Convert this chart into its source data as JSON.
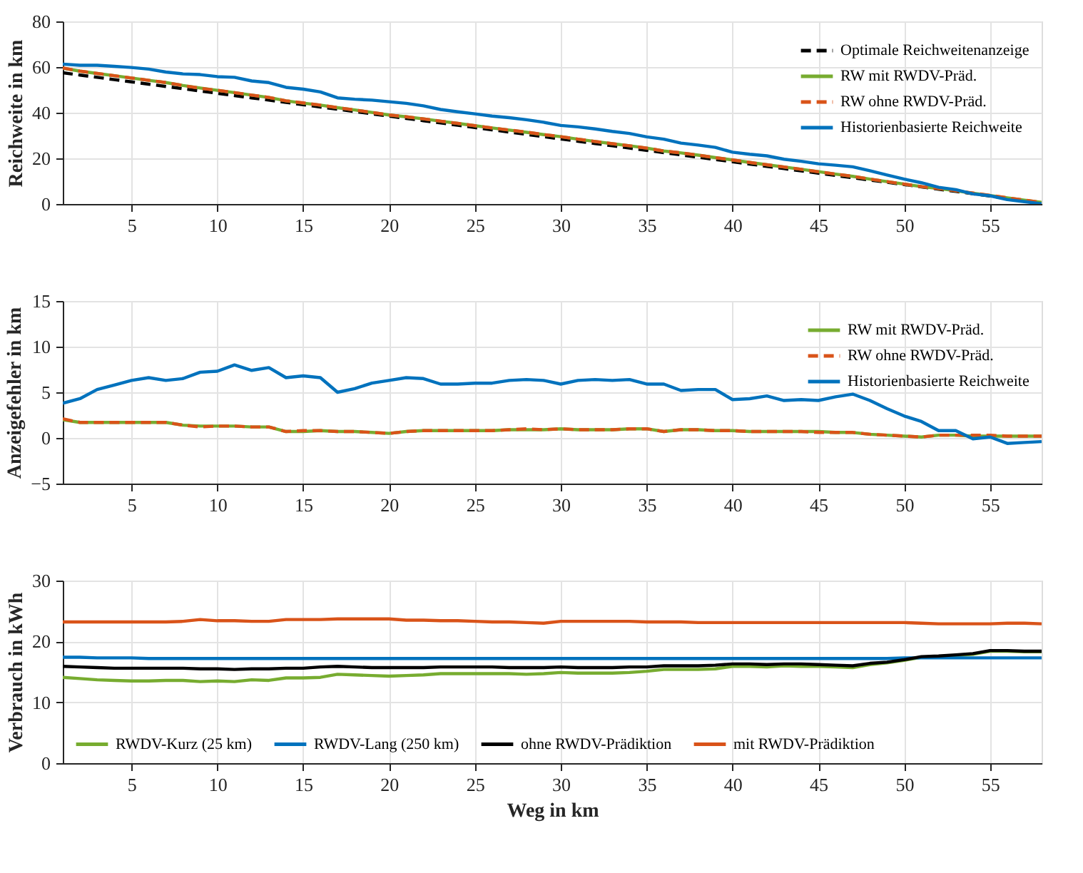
{
  "chart_data": [
    {
      "type": "line",
      "ylabel": "Reichweite in km",
      "xlim": [
        1,
        58
      ],
      "xticks": [
        5,
        10,
        15,
        20,
        25,
        30,
        35,
        40,
        45,
        50,
        55
      ],
      "ylim": [
        0,
        80
      ],
      "yticks": [
        0,
        20,
        40,
        60,
        80
      ],
      "grid": true,
      "legend": "top right",
      "x": [
        1,
        2,
        3,
        4,
        5,
        6,
        7,
        8,
        9,
        10,
        11,
        12,
        13,
        14,
        15,
        16,
        17,
        18,
        19,
        20,
        21,
        22,
        23,
        24,
        25,
        26,
        27,
        28,
        29,
        30,
        31,
        32,
        33,
        34,
        35,
        36,
        37,
        38,
        39,
        40,
        41,
        42,
        43,
        44,
        45,
        46,
        47,
        48,
        49,
        50,
        51,
        52,
        53,
        54,
        55,
        56,
        57,
        58
      ],
      "series": [
        {
          "name": "Optimale Reichweitenanzeige",
          "color": "#000000",
          "line_style": "dashed",
          "values": [
            57.5,
            56.5,
            55.5,
            54.5,
            53.5,
            52.5,
            51.5,
            50.5,
            49.5,
            48.5,
            47.5,
            46.5,
            45.5,
            44.5,
            43.5,
            42.5,
            41.5,
            40.5,
            39.5,
            38.5,
            37.5,
            36.5,
            35.5,
            34.5,
            33.5,
            32.5,
            31.5,
            30.5,
            29.5,
            28.5,
            27.5,
            26.5,
            25.5,
            24.5,
            23.5,
            22.5,
            21.5,
            20.5,
            19.5,
            18.5,
            17.5,
            16.5,
            15.5,
            14.5,
            13.5,
            12.5,
            11.5,
            10.5,
            9.5,
            8.5,
            7.5,
            6.5,
            5.5,
            4.5,
            3.5,
            2.5,
            1.5,
            0.5
          ]
        },
        {
          "name": "RW mit RWDV-Präd.",
          "color": "#77ac30",
          "line_style": "solid",
          "values": [
            59.5,
            58.2,
            57.2,
            56.2,
            55.2,
            54.2,
            53.2,
            51.9,
            50.8,
            49.8,
            48.8,
            47.7,
            46.7,
            45.2,
            44.2,
            43.3,
            42.2,
            41.2,
            40.1,
            39.0,
            38.2,
            37.3,
            36.3,
            35.3,
            34.3,
            33.3,
            32.4,
            31.4,
            30.4,
            29.5,
            28.4,
            27.4,
            26.4,
            25.5,
            24.5,
            23.2,
            22.4,
            21.4,
            20.3,
            19.3,
            18.2,
            17.2,
            16.2,
            15.2,
            14.2,
            13.1,
            12.1,
            10.9,
            9.8,
            8.7,
            7.6,
            6.8,
            5.8,
            4.7,
            3.7,
            2.7,
            1.7,
            0.7
          ]
        },
        {
          "name": "RW ohne RWDV-Präd.",
          "color": "#d95319",
          "line_style": "dashed",
          "values": [
            59.6,
            58.2,
            57.2,
            56.2,
            55.2,
            54.2,
            53.2,
            51.9,
            50.7,
            49.8,
            48.8,
            47.7,
            46.7,
            45.2,
            44.3,
            43.3,
            42.2,
            41.2,
            40.1,
            39.0,
            38.2,
            37.3,
            36.3,
            35.3,
            34.3,
            33.3,
            32.4,
            31.5,
            30.4,
            29.5,
            28.4,
            27.4,
            26.4,
            25.5,
            24.5,
            23.2,
            22.4,
            21.4,
            20.3,
            19.3,
            18.2,
            17.2,
            16.2,
            15.2,
            14.1,
            13.1,
            12.1,
            10.9,
            9.8,
            8.7,
            7.6,
            6.8,
            5.8,
            4.8,
            3.8,
            2.7,
            1.7,
            0.7
          ]
        },
        {
          "name": "Historienbasierte Reichweite",
          "color": "#0072bd",
          "line_style": "solid",
          "values": [
            61.3,
            60.8,
            60.8,
            60.3,
            59.8,
            59.1,
            57.8,
            57.0,
            56.7,
            55.8,
            55.5,
            53.9,
            53.2,
            51.1,
            50.3,
            49.1,
            46.5,
            45.9,
            45.5,
            44.8,
            44.1,
            43.0,
            41.4,
            40.4,
            39.5,
            38.5,
            37.8,
            36.9,
            35.8,
            34.4,
            33.8,
            32.9,
            31.8,
            30.9,
            29.4,
            28.4,
            26.7,
            25.8,
            24.8,
            22.7,
            21.8,
            21.1,
            19.6,
            18.7,
            17.6,
            17.0,
            16.3,
            14.6,
            12.7,
            10.9,
            9.3,
            7.3,
            6.3,
            4.4,
            3.6,
            1.9,
            1.0,
            0.1
          ]
        }
      ]
    },
    {
      "type": "line",
      "ylabel": "Anzeigefehler in km",
      "xlim": [
        1,
        58
      ],
      "xticks": [
        5,
        10,
        15,
        20,
        25,
        30,
        35,
        40,
        45,
        50,
        55
      ],
      "ylim": [
        -5,
        15
      ],
      "yticks": [
        -5,
        0,
        5,
        10,
        15
      ],
      "grid": true,
      "legend": "top right",
      "x": [
        1,
        2,
        3,
        4,
        5,
        6,
        7,
        8,
        9,
        10,
        11,
        12,
        13,
        14,
        15,
        16,
        17,
        18,
        19,
        20,
        21,
        22,
        23,
        24,
        25,
        26,
        27,
        28,
        29,
        30,
        31,
        32,
        33,
        34,
        35,
        36,
        37,
        38,
        39,
        40,
        41,
        42,
        43,
        44,
        45,
        46,
        47,
        48,
        49,
        50,
        51,
        52,
        53,
        54,
        55,
        56,
        57,
        58
      ],
      "series": [
        {
          "name": "RW mit RWDV-Präd.",
          "color": "#77ac30",
          "line_style": "solid",
          "values": [
            2.0,
            1.7,
            1.7,
            1.7,
            1.7,
            1.7,
            1.7,
            1.4,
            1.3,
            1.3,
            1.3,
            1.2,
            1.2,
            0.7,
            0.7,
            0.8,
            0.7,
            0.7,
            0.6,
            0.5,
            0.7,
            0.8,
            0.8,
            0.8,
            0.8,
            0.8,
            0.9,
            0.9,
            0.9,
            1.0,
            0.9,
            0.9,
            0.9,
            1.0,
            1.0,
            0.7,
            0.9,
            0.9,
            0.8,
            0.8,
            0.7,
            0.7,
            0.7,
            0.7,
            0.7,
            0.6,
            0.6,
            0.4,
            0.3,
            0.2,
            0.1,
            0.3,
            0.3,
            0.2,
            0.2,
            0.2,
            0.2,
            0.2
          ]
        },
        {
          "name": "RW ohne RWDV-Präd.",
          "color": "#d95319",
          "line_style": "dashed",
          "values": [
            2.1,
            1.7,
            1.7,
            1.7,
            1.7,
            1.7,
            1.7,
            1.4,
            1.2,
            1.3,
            1.3,
            1.2,
            1.2,
            0.7,
            0.8,
            0.8,
            0.7,
            0.7,
            0.6,
            0.5,
            0.7,
            0.8,
            0.8,
            0.8,
            0.8,
            0.8,
            0.9,
            1.0,
            0.9,
            1.0,
            0.9,
            0.9,
            0.9,
            1.0,
            1.0,
            0.7,
            0.9,
            0.9,
            0.8,
            0.8,
            0.7,
            0.7,
            0.7,
            0.7,
            0.6,
            0.6,
            0.6,
            0.4,
            0.3,
            0.2,
            0.1,
            0.3,
            0.3,
            0.3,
            0.3,
            0.2,
            0.2,
            0.2
          ]
        },
        {
          "name": "Historienbasierte Reichweite",
          "color": "#0072bd",
          "line_style": "solid",
          "values": [
            3.8,
            4.3,
            5.3,
            5.8,
            6.3,
            6.6,
            6.3,
            6.5,
            7.2,
            7.3,
            8.0,
            7.4,
            7.7,
            6.6,
            6.8,
            6.6,
            5.0,
            5.4,
            6.0,
            6.3,
            6.6,
            6.5,
            5.9,
            5.9,
            6.0,
            6.0,
            6.3,
            6.4,
            6.3,
            5.9,
            6.3,
            6.4,
            6.3,
            6.4,
            5.9,
            5.9,
            5.2,
            5.3,
            5.3,
            4.2,
            4.3,
            4.6,
            4.1,
            4.2,
            4.1,
            4.5,
            4.8,
            4.1,
            3.2,
            2.4,
            1.8,
            0.8,
            0.8,
            -0.1,
            0.1,
            -0.6,
            -0.5,
            -0.4
          ]
        }
      ]
    },
    {
      "type": "line",
      "xlabel": "Weg in km",
      "ylabel": "Verbrauch in kWh",
      "xlim": [
        1,
        58
      ],
      "xticks": [
        5,
        10,
        15,
        20,
        25,
        30,
        35,
        40,
        45,
        50,
        55
      ],
      "ylim": [
        0,
        30
      ],
      "yticks": [
        0,
        10,
        20,
        30
      ],
      "grid": true,
      "legend": "bottom",
      "x": [
        1,
        2,
        3,
        4,
        5,
        6,
        7,
        8,
        9,
        10,
        11,
        12,
        13,
        14,
        15,
        16,
        17,
        18,
        19,
        20,
        21,
        22,
        23,
        24,
        25,
        26,
        27,
        28,
        29,
        30,
        31,
        32,
        33,
        34,
        35,
        36,
        37,
        38,
        39,
        40,
        41,
        42,
        43,
        44,
        45,
        46,
        47,
        48,
        49,
        50,
        51,
        52,
        53,
        54,
        55,
        56,
        57,
        58
      ],
      "series": [
        {
          "name": "RWDV-Kurz (25 km)",
          "color": "#77ac30",
          "line_style": "solid",
          "values": [
            14.1,
            13.9,
            13.7,
            13.6,
            13.5,
            13.5,
            13.6,
            13.6,
            13.4,
            13.5,
            13.4,
            13.7,
            13.6,
            14.0,
            14.0,
            14.1,
            14.6,
            14.5,
            14.4,
            14.3,
            14.4,
            14.5,
            14.7,
            14.7,
            14.7,
            14.7,
            14.7,
            14.6,
            14.7,
            14.9,
            14.8,
            14.8,
            14.8,
            14.9,
            15.1,
            15.4,
            15.4,
            15.4,
            15.5,
            15.9,
            15.9,
            15.8,
            16.0,
            15.9,
            15.9,
            15.8,
            15.7,
            16.2,
            16.5,
            16.9,
            17.4,
            17.5,
            17.7,
            17.9,
            18.4,
            18.4,
            18.3,
            18.3
          ]
        },
        {
          "name": "RWDV-Lang (250 km)",
          "color": "#0072bd",
          "line_style": "solid",
          "values": [
            17.4,
            17.4,
            17.3,
            17.3,
            17.3,
            17.2,
            17.2,
            17.2,
            17.2,
            17.2,
            17.2,
            17.2,
            17.2,
            17.2,
            17.2,
            17.2,
            17.2,
            17.2,
            17.2,
            17.2,
            17.2,
            17.2,
            17.2,
            17.2,
            17.2,
            17.2,
            17.2,
            17.2,
            17.2,
            17.2,
            17.2,
            17.2,
            17.2,
            17.2,
            17.2,
            17.2,
            17.2,
            17.2,
            17.2,
            17.2,
            17.2,
            17.2,
            17.2,
            17.2,
            17.2,
            17.2,
            17.2,
            17.2,
            17.2,
            17.3,
            17.3,
            17.3,
            17.3,
            17.3,
            17.3,
            17.3,
            17.3,
            17.3
          ]
        },
        {
          "name": "ohne RWDV-Prädiktion",
          "color": "#000000",
          "line_style": "solid",
          "values": [
            15.9,
            15.8,
            15.7,
            15.6,
            15.6,
            15.6,
            15.6,
            15.6,
            15.5,
            15.5,
            15.4,
            15.5,
            15.5,
            15.6,
            15.6,
            15.8,
            15.9,
            15.8,
            15.7,
            15.7,
            15.7,
            15.7,
            15.8,
            15.8,
            15.8,
            15.8,
            15.7,
            15.7,
            15.7,
            15.8,
            15.7,
            15.7,
            15.7,
            15.8,
            15.8,
            16.0,
            16.0,
            16.0,
            16.1,
            16.3,
            16.3,
            16.2,
            16.3,
            16.3,
            16.2,
            16.1,
            16.0,
            16.4,
            16.6,
            17.0,
            17.5,
            17.6,
            17.8,
            18.0,
            18.5,
            18.5,
            18.4,
            18.4
          ]
        },
        {
          "name": "mit RWDV-Prädiktion",
          "color": "#d95319",
          "line_style": "solid",
          "values": [
            23.2,
            23.2,
            23.2,
            23.2,
            23.2,
            23.2,
            23.2,
            23.3,
            23.6,
            23.4,
            23.4,
            23.3,
            23.3,
            23.6,
            23.6,
            23.6,
            23.7,
            23.7,
            23.7,
            23.7,
            23.5,
            23.5,
            23.4,
            23.4,
            23.3,
            23.2,
            23.2,
            23.1,
            23.0,
            23.3,
            23.3,
            23.3,
            23.3,
            23.3,
            23.2,
            23.2,
            23.2,
            23.1,
            23.1,
            23.1,
            23.1,
            23.1,
            23.1,
            23.1,
            23.1,
            23.1,
            23.1,
            23.1,
            23.1,
            23.1,
            23.0,
            22.9,
            22.9,
            22.9,
            22.9,
            23.0,
            23.0,
            22.9
          ]
        }
      ]
    }
  ]
}
